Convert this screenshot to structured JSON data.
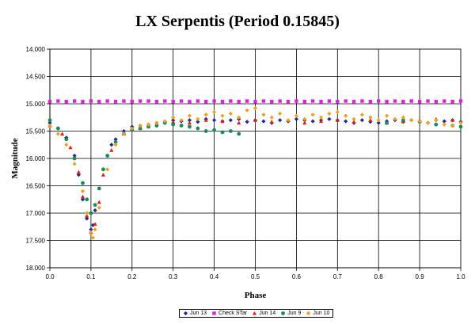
{
  "chart_data": {
    "type": "scatter",
    "title": "LX Serpentis (Period 0.15845)",
    "xlabel": "Phase",
    "ylabel": "Magnitude",
    "xlim": [
      0.0,
      1.0
    ],
    "ylim": [
      14.0,
      18.0
    ],
    "y_inverted": true,
    "grid": true,
    "legend_position": "bottom",
    "x_ticks": [
      "0.0",
      "0.1",
      "0.2",
      "0.3",
      "0.4",
      "0.5",
      "0.6",
      "0.7",
      "0.8",
      "0.9",
      "1.0"
    ],
    "y_ticks": [
      "14.000",
      "14.500",
      "15.000",
      "15.500",
      "16.000",
      "16.500",
      "17.000",
      "17.500",
      "18.000"
    ],
    "series": [
      {
        "name": "Jun 13",
        "color": "#1f2a8c",
        "marker": "diamond",
        "x": [
          0.0,
          0.02,
          0.04,
          0.06,
          0.07,
          0.08,
          0.09,
          0.1,
          0.105,
          0.11,
          0.12,
          0.13,
          0.14,
          0.15,
          0.16,
          0.18,
          0.2,
          0.22,
          0.24,
          0.26,
          0.28,
          0.3,
          0.32,
          0.34,
          0.36,
          0.38,
          0.4,
          0.42,
          0.44,
          0.46,
          0.48,
          0.5,
          0.52,
          0.54,
          0.56,
          0.58,
          0.6,
          0.62,
          0.64,
          0.66,
          0.68,
          0.7,
          0.72,
          0.74,
          0.76,
          0.78,
          0.8,
          0.82,
          0.84,
          0.86,
          0.88,
          0.9,
          0.92,
          0.94,
          0.96,
          0.98,
          1.0
        ],
        "y": [
          15.35,
          15.45,
          15.62,
          15.95,
          16.3,
          16.75,
          17.1,
          17.3,
          17.22,
          16.95,
          16.55,
          16.2,
          15.95,
          15.75,
          15.65,
          15.5,
          15.42,
          15.4,
          15.38,
          15.35,
          15.33,
          15.3,
          15.32,
          15.3,
          15.33,
          15.28,
          15.3,
          15.32,
          15.3,
          15.28,
          15.33,
          15.3,
          15.32,
          15.35,
          15.3,
          15.32,
          15.28,
          15.3,
          15.32,
          15.3,
          15.28,
          15.3,
          15.32,
          15.35,
          15.3,
          15.33,
          15.35,
          15.32,
          15.3,
          15.33,
          15.3,
          15.32,
          15.35,
          15.3,
          15.32,
          15.3,
          15.33
        ]
      },
      {
        "name": "Check STar",
        "color": "#e020e0",
        "marker": "square",
        "x": [
          0.0,
          0.02,
          0.04,
          0.06,
          0.08,
          0.1,
          0.12,
          0.14,
          0.16,
          0.18,
          0.2,
          0.22,
          0.24,
          0.26,
          0.28,
          0.3,
          0.32,
          0.34,
          0.36,
          0.38,
          0.4,
          0.42,
          0.44,
          0.46,
          0.48,
          0.5,
          0.52,
          0.54,
          0.56,
          0.58,
          0.6,
          0.62,
          0.64,
          0.66,
          0.68,
          0.7,
          0.72,
          0.74,
          0.76,
          0.78,
          0.8,
          0.82,
          0.84,
          0.86,
          0.88,
          0.9,
          0.92,
          0.94,
          0.96,
          0.98,
          1.0
        ],
        "y": [
          14.96,
          14.95,
          14.96,
          14.95,
          14.96,
          14.95,
          14.96,
          14.95,
          14.96,
          14.95,
          14.96,
          14.95,
          14.95,
          14.96,
          14.95,
          14.96,
          14.95,
          14.96,
          14.95,
          14.96,
          14.95,
          14.96,
          14.95,
          14.96,
          14.95,
          14.96,
          14.95,
          14.96,
          14.95,
          14.96,
          14.95,
          14.96,
          14.95,
          14.96,
          14.95,
          14.96,
          14.95,
          14.96,
          14.95,
          14.96,
          14.95,
          14.96,
          14.95,
          14.96,
          14.95,
          14.96,
          14.95,
          14.96,
          14.95,
          14.96,
          14.95
        ]
      },
      {
        "name": "Jun 14",
        "color": "#e02010",
        "marker": "triangle",
        "x": [
          0.0,
          0.03,
          0.05,
          0.07,
          0.08,
          0.09,
          0.1,
          0.11,
          0.12,
          0.13,
          0.15,
          0.18,
          0.22,
          0.26,
          0.3,
          0.34,
          0.38,
          0.42,
          0.46,
          0.5,
          0.54,
          0.58,
          0.62,
          0.66,
          0.7,
          0.74,
          0.78,
          0.82,
          0.86,
          0.9,
          0.94,
          0.98
        ],
        "y": [
          15.4,
          15.55,
          15.8,
          16.25,
          16.7,
          17.05,
          17.35,
          17.2,
          16.8,
          16.3,
          15.85,
          15.55,
          15.45,
          15.38,
          15.33,
          15.35,
          15.3,
          15.32,
          15.35,
          15.3,
          15.33,
          15.3,
          15.35,
          15.32,
          15.3,
          15.33,
          15.3,
          15.35,
          15.32,
          15.3,
          15.28,
          15.3
        ]
      },
      {
        "name": "Jun 9",
        "color": "#1a8a5a",
        "marker": "circle",
        "x": [
          0.0,
          0.02,
          0.04,
          0.06,
          0.08,
          0.09,
          0.1,
          0.11,
          0.12,
          0.13,
          0.14,
          0.16,
          0.18,
          0.2,
          0.22,
          0.24,
          0.26,
          0.28,
          0.3,
          0.32,
          0.34,
          0.36,
          0.38,
          0.4,
          0.42,
          0.44,
          0.46,
          0.82,
          0.86,
          0.9,
          0.94,
          0.98,
          1.0
        ],
        "y": [
          15.3,
          15.45,
          15.65,
          16.0,
          16.45,
          16.75,
          17.0,
          16.85,
          16.55,
          16.2,
          15.95,
          15.7,
          15.55,
          15.48,
          15.45,
          15.42,
          15.4,
          15.35,
          15.38,
          15.4,
          15.42,
          15.45,
          15.5,
          15.48,
          15.52,
          15.5,
          15.55,
          15.35,
          15.3,
          15.33,
          15.38,
          15.4,
          15.42
        ]
      },
      {
        "name": "Jun 10",
        "color": "#f0a020",
        "marker": "diamond",
        "x": [
          0.0,
          0.02,
          0.04,
          0.06,
          0.08,
          0.09,
          0.1,
          0.105,
          0.11,
          0.12,
          0.14,
          0.16,
          0.18,
          0.2,
          0.22,
          0.24,
          0.26,
          0.28,
          0.3,
          0.32,
          0.34,
          0.36,
          0.38,
          0.4,
          0.42,
          0.44,
          0.46,
          0.48,
          0.5,
          0.52,
          0.54,
          0.56,
          0.58,
          0.6,
          0.62,
          0.64,
          0.66,
          0.68,
          0.7,
          0.72,
          0.74,
          0.76,
          0.78,
          0.8,
          0.82,
          0.84,
          0.86,
          0.88,
          0.9,
          0.92,
          0.94,
          0.96,
          0.98,
          1.0
        ],
        "y": [
          15.4,
          15.55,
          15.75,
          16.1,
          16.6,
          17.0,
          17.35,
          17.45,
          17.3,
          16.9,
          16.2,
          15.75,
          15.55,
          15.45,
          15.4,
          15.38,
          15.35,
          15.32,
          15.25,
          15.3,
          15.22,
          15.28,
          15.2,
          15.15,
          15.22,
          15.18,
          15.25,
          15.12,
          15.08,
          15.2,
          15.25,
          15.18,
          15.3,
          15.22,
          15.28,
          15.2,
          15.25,
          15.18,
          15.15,
          15.22,
          15.28,
          15.2,
          15.25,
          15.3,
          15.22,
          15.28,
          15.25,
          15.3,
          15.32,
          15.35,
          15.3,
          15.38,
          15.4,
          15.35
        ]
      }
    ]
  }
}
